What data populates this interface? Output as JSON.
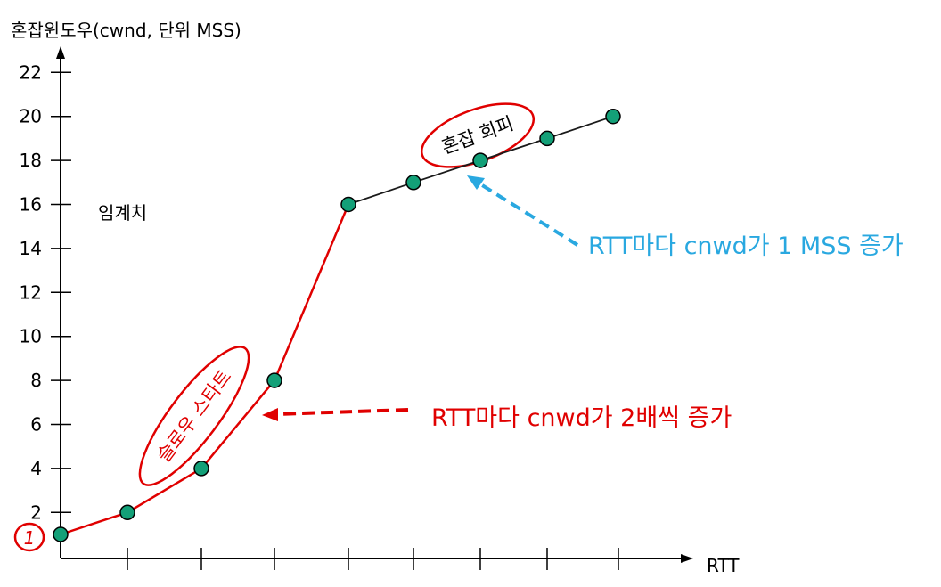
{
  "chart_data": {
    "type": "line",
    "title": "",
    "ylabel": "혼잡윈도우(cwnd, 단위 MSS)",
    "xlabel": "RTT",
    "ylim": [
      0,
      22
    ],
    "yticks": [
      2,
      4,
      6,
      8,
      10,
      12,
      14,
      16,
      18,
      20,
      22
    ],
    "x_tick_count": 8,
    "grid": false,
    "legend": "none",
    "series": [
      {
        "points": [
          {
            "x": 0,
            "y": 1
          },
          {
            "x": 1,
            "y": 2
          },
          {
            "x": 2,
            "y": 4
          },
          {
            "x": 3,
            "y": 8
          },
          {
            "x": 4,
            "y": 16
          },
          {
            "x": 5,
            "y": 17
          },
          {
            "x": 6,
            "y": 18
          },
          {
            "x": 7,
            "y": 19
          },
          {
            "x": 8,
            "y": 20
          }
        ]
      }
    ],
    "threshold_label": "임계치",
    "slow_start_label": "슬로우 스타트",
    "congestion_avoidance_label": "혼잡 회피",
    "initial_marker": "1",
    "annotation_slow_start": "RTT마다 cnwd가 2배씩 증가",
    "annotation_avoidance": "RTT마다 cnwd가 1 MSS 증가"
  },
  "colors": {
    "slow_start_line": "#e00000",
    "avoidance_line": "#1a1a1a",
    "point_fill": "#13a078",
    "blue_annotation": "#29a8e0",
    "red_annotation": "#e00000",
    "axis": "#000000"
  }
}
